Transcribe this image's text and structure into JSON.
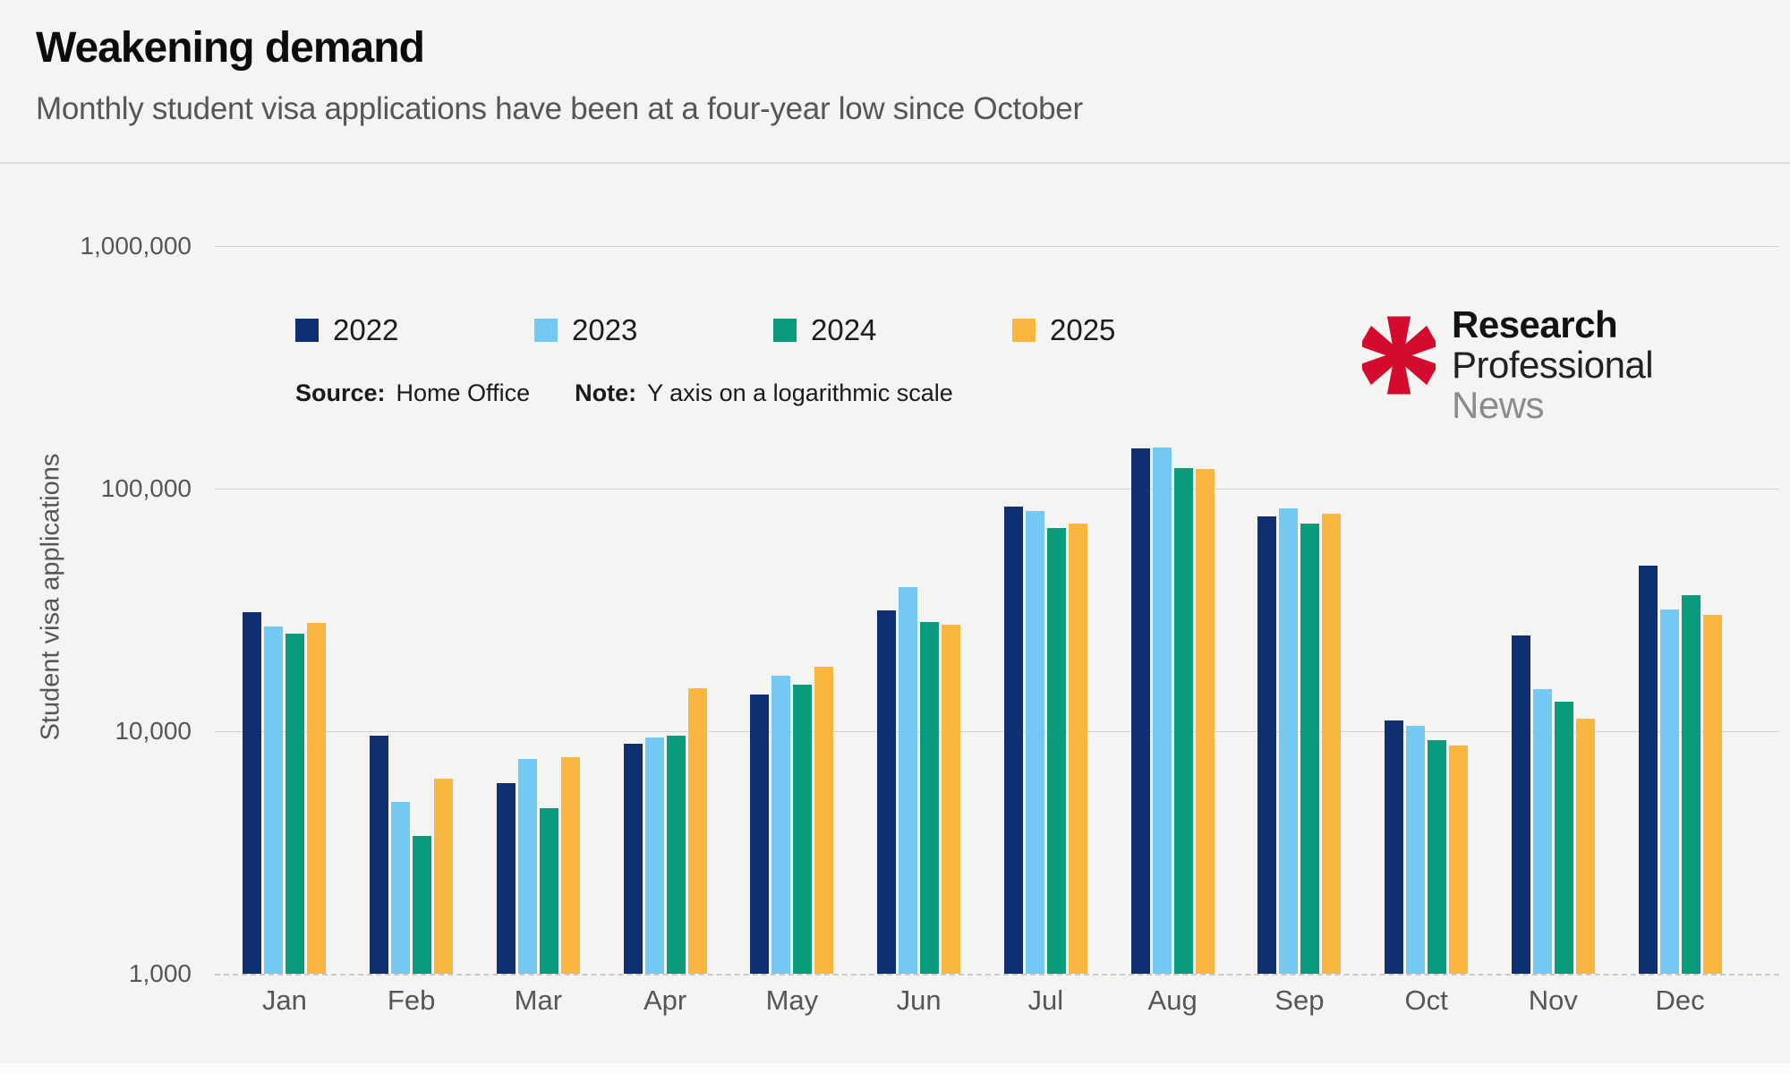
{
  "header": {
    "title": "Weakening demand",
    "subtitle": "Monthly student visa applications have been at a four-year low since October"
  },
  "y_axis": {
    "title": "Student visa applications",
    "tick_labels": [
      "1,000,000",
      "100,000",
      "10,000",
      "1,000"
    ]
  },
  "source_note": {
    "source_label": "Source:",
    "source_value": "Home Office",
    "note_label": "Note:",
    "note_value": "Y axis on a logarithmic scale"
  },
  "logo": {
    "line1": "Research",
    "line2": "Professional",
    "line3": "News",
    "asterisk_color": "#d40b2e"
  },
  "colors": {
    "background": "#f4f4f2",
    "gridline": "#d2d2cf",
    "text_gray": "#55565a",
    "series_2022": "#0e2f70",
    "series_2023": "#74c9f3",
    "series_2024": "#089c7d",
    "series_2025": "#f9b640"
  },
  "chart_data": {
    "type": "bar",
    "title": "Weakening demand",
    "subtitle": "Monthly student visa applications have been at a four-year low since October",
    "xlabel": "",
    "ylabel": "Student visa applications",
    "yscale": "log",
    "ylim": [
      1000,
      1000000
    ],
    "gridlines": [
      1000000,
      100000,
      10000,
      1000
    ],
    "grid": "horizontal",
    "legend_position": "top-left",
    "categories": [
      "Jan",
      "Feb",
      "Mar",
      "Apr",
      "May",
      "Jun",
      "Jul",
      "Aug",
      "Sep",
      "Oct",
      "Nov",
      "Dec"
    ],
    "series": [
      {
        "name": "2022",
        "color": "#0e2f70",
        "values": [
          31000,
          9600,
          6100,
          8900,
          14200,
          31600,
          84300,
          146800,
          76800,
          11100,
          24900,
          48200
        ]
      },
      {
        "name": "2023",
        "color": "#74c9f3",
        "values": [
          27000,
          5100,
          7700,
          9400,
          16900,
          39200,
          80800,
          148000,
          82900,
          10500,
          14900,
          31800
        ]
      },
      {
        "name": "2024",
        "color": "#089c7d",
        "values": [
          25300,
          3700,
          4800,
          9600,
          15500,
          28100,
          68700,
          121700,
          71700,
          9200,
          13200,
          36500
        ]
      },
      {
        "name": "2025",
        "color": "#f9b640",
        "values": [
          28000,
          6400,
          7800,
          15000,
          18400,
          27600,
          71700,
          121000,
          78800,
          8700,
          11300,
          30100
        ]
      }
    ]
  }
}
